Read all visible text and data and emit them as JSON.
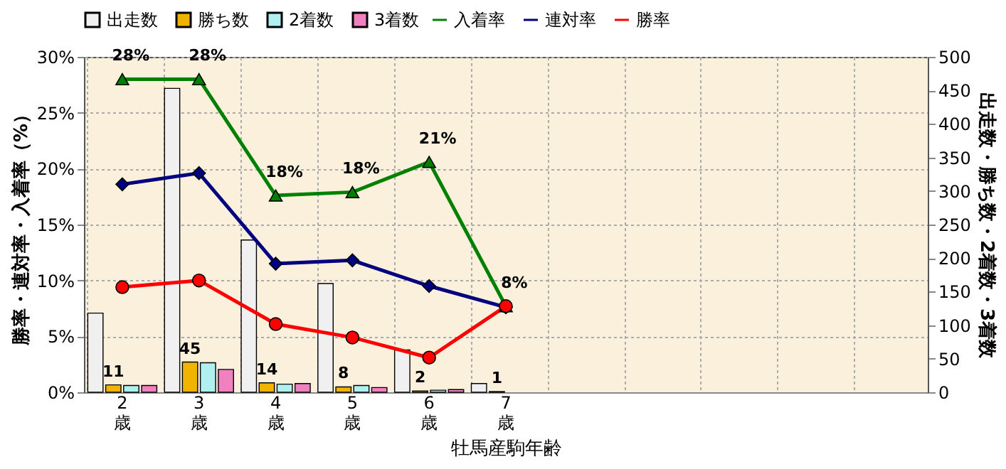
{
  "chart_data": {
    "type": "bar",
    "xlabel": "牡馬産駒年齢",
    "ylabel": "勝率・連対率・入着率（%）",
    "y2label": "出走数・勝ち数・2着数・3着数",
    "categories": [
      "2歳",
      "3歳",
      "4歳",
      "5歳",
      "6歳",
      "7歳",
      null,
      null,
      null,
      null,
      null
    ],
    "series": [
      {
        "name": "出走数",
        "color": "#f0f0f0",
        "axis": "y2",
        "values": [
          118,
          453,
          227,
          162,
          63,
          13,
          null,
          null,
          null,
          null,
          null
        ]
      },
      {
        "name": "勝ち数",
        "color": "#f0b400",
        "axis": "y2",
        "values": [
          11,
          45,
          14,
          8,
          2,
          1,
          null,
          null,
          null,
          null,
          null
        ],
        "value_labels": [
          "11",
          "45",
          "14",
          "8",
          "2",
          "1",
          null,
          null,
          null,
          null,
          null
        ]
      },
      {
        "name": "2着数",
        "color": "#b0f0f0",
        "axis": "y2",
        "values": [
          10,
          44,
          12,
          10,
          3,
          null,
          null,
          null,
          null,
          null,
          null
        ]
      },
      {
        "name": "3着数",
        "color": "#f080c0",
        "axis": "y2",
        "values": [
          10,
          34,
          13,
          7,
          4,
          null,
          null,
          null,
          null,
          null,
          null
        ]
      },
      {
        "name": "入着率",
        "type": "line",
        "color": "#008000",
        "marker": "triangle",
        "values": [
          28.0,
          28.0,
          17.6,
          17.9,
          20.6,
          7.7,
          null,
          null,
          null,
          null,
          null
        ],
        "value_labels": [
          "28%",
          "28%",
          "18%",
          "18%",
          "21%",
          "8%",
          null,
          null,
          null,
          null,
          null
        ]
      },
      {
        "name": "連対率",
        "type": "line",
        "color": "#000080",
        "marker": "diamond",
        "values": [
          18.6,
          19.6,
          11.5,
          11.8,
          9.5,
          7.6,
          null,
          null,
          null,
          null,
          null
        ]
      },
      {
        "name": "勝率",
        "type": "line",
        "color": "#ff0000",
        "marker": "circle",
        "values": [
          9.4,
          10.0,
          6.1,
          4.9,
          3.1,
          7.7,
          null,
          null,
          null,
          null,
          null
        ]
      }
    ],
    "ylim": [
      0,
      30
    ],
    "yticks": [
      {
        "value": 0,
        "label": "0%"
      },
      {
        "value": 5,
        "label": "5%"
      },
      {
        "value": 10,
        "label": "10%"
      },
      {
        "value": 15,
        "label": "15%"
      },
      {
        "value": 20,
        "label": "20%"
      },
      {
        "value": 25,
        "label": "25%"
      },
      {
        "value": 30,
        "label": "30%"
      }
    ],
    "y2lim": [
      0,
      500
    ],
    "y2ticks": [
      0,
      50,
      100,
      150,
      200,
      250,
      300,
      350,
      400,
      450,
      500
    ],
    "grid": true,
    "legend": "top"
  }
}
